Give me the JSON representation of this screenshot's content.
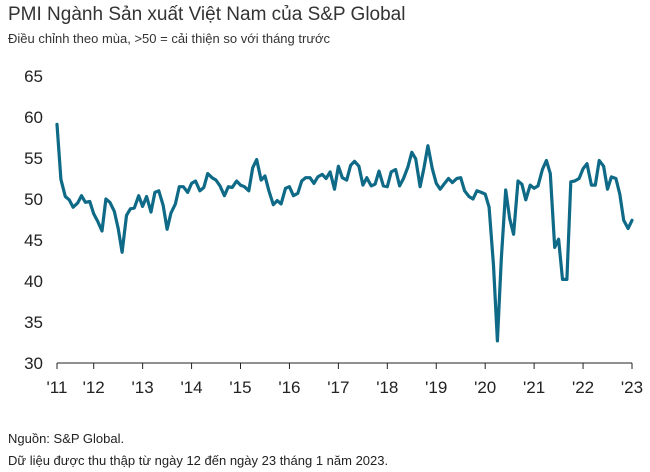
{
  "header": {
    "title": "PMI Ngành Sản xuất Việt Nam của S&P Global",
    "subtitle": "Điều chỉnh theo mùa, >50 = cải thiện so với tháng trước"
  },
  "footer": {
    "source": "Nguồn: S&P Global.",
    "note": "Dữ liệu được thu thập từ ngày 12 đến ngày 23 tháng 1 năm 2023."
  },
  "chart_data": {
    "type": "line",
    "title": "PMI Ngành Sản xuất Việt Nam của S&P Global",
    "subtitle": "Điều chỉnh theo mùa, >50 = cải thiện so với tháng trước",
    "xlabel": "",
    "ylabel": "",
    "ylim": [
      30,
      65
    ],
    "yticks": [
      30,
      35,
      40,
      45,
      50,
      55,
      60,
      65
    ],
    "xlim": [
      2011.25,
      2023.0
    ],
    "xticks": [
      {
        "value": 2011.25,
        "label": "'11"
      },
      {
        "value": 2012.0,
        "label": "'12"
      },
      {
        "value": 2013.0,
        "label": "'13"
      },
      {
        "value": 2014.0,
        "label": "'14"
      },
      {
        "value": 2015.0,
        "label": "'15"
      },
      {
        "value": 2016.0,
        "label": "'16"
      },
      {
        "value": 2017.0,
        "label": "'17"
      },
      {
        "value": 2018.0,
        "label": "'18"
      },
      {
        "value": 2019.0,
        "label": "'19"
      },
      {
        "value": 2020.0,
        "label": "'20"
      },
      {
        "value": 2021.0,
        "label": "'21"
      },
      {
        "value": 2022.0,
        "label": "'22"
      },
      {
        "value": 2023.0,
        "label": "'23"
      }
    ],
    "grid": false,
    "line_color": "#0e6a86",
    "series": [
      {
        "x": [
          2011.25,
          2011.33,
          2011.42,
          2011.5,
          2011.58,
          2011.67,
          2011.75,
          2011.83,
          2011.92,
          2012.0,
          2012.08,
          2012.17,
          2012.25,
          2012.33,
          2012.42,
          2012.5,
          2012.58,
          2012.67,
          2012.75,
          2012.83,
          2012.92,
          2013.0,
          2013.08,
          2013.17,
          2013.25,
          2013.33,
          2013.42,
          2013.5,
          2013.58,
          2013.67,
          2013.75,
          2013.83,
          2013.92,
          2014.0,
          2014.08,
          2014.17,
          2014.25,
          2014.33,
          2014.42,
          2014.5,
          2014.58,
          2014.67,
          2014.75,
          2014.83,
          2014.92,
          2015.0,
          2015.08,
          2015.17,
          2015.25,
          2015.33,
          2015.42,
          2015.5,
          2015.58,
          2015.67,
          2015.75,
          2015.83,
          2015.92,
          2016.0,
          2016.08,
          2016.17,
          2016.25,
          2016.33,
          2016.42,
          2016.5,
          2016.58,
          2016.67,
          2016.75,
          2016.83,
          2016.92,
          2017.0,
          2017.08,
          2017.17,
          2017.25,
          2017.33,
          2017.42,
          2017.5,
          2017.58,
          2017.67,
          2017.75,
          2017.83,
          2017.92,
          2018.0,
          2018.08,
          2018.17,
          2018.25,
          2018.33,
          2018.42,
          2018.5,
          2018.58,
          2018.67,
          2018.75,
          2018.83,
          2018.92,
          2019.0,
          2019.08,
          2019.17,
          2019.25,
          2019.33,
          2019.42,
          2019.5,
          2019.58,
          2019.67,
          2019.75,
          2019.83,
          2019.92,
          2020.0,
          2020.08,
          2020.17,
          2020.25,
          2020.33,
          2020.42,
          2020.5,
          2020.58,
          2020.67,
          2020.75,
          2020.83,
          2020.92,
          2021.0,
          2021.08,
          2021.17,
          2021.25,
          2021.33,
          2021.42,
          2021.5,
          2021.58,
          2021.67,
          2021.75,
          2021.83,
          2021.92,
          2022.0,
          2022.08,
          2022.17,
          2022.25,
          2022.33,
          2022.42,
          2022.5,
          2022.58,
          2022.67,
          2022.75,
          2022.83,
          2022.92,
          2023.0
        ],
        "values": [
          59.1,
          52.4,
          50.3,
          49.9,
          49.0,
          49.5,
          50.4,
          49.6,
          49.7,
          48.2,
          47.3,
          46.1,
          50.0,
          49.6,
          48.5,
          46.4,
          43.5,
          48.0,
          48.8,
          48.9,
          50.4,
          49.1,
          50.3,
          48.4,
          50.8,
          51.0,
          49.2,
          46.3,
          48.3,
          49.4,
          51.5,
          51.5,
          50.8,
          51.9,
          52.2,
          51.0,
          51.4,
          53.1,
          52.6,
          52.3,
          51.6,
          50.4,
          51.5,
          51.4,
          52.2,
          51.7,
          51.5,
          51.0,
          53.8,
          54.8,
          52.3,
          52.8,
          51.0,
          49.3,
          49.8,
          49.4,
          51.3,
          51.5,
          50.4,
          50.7,
          52.2,
          52.6,
          52.6,
          51.9,
          52.7,
          53.0,
          52.5,
          53.3,
          51.2,
          54.0,
          52.6,
          52.3,
          54.1,
          54.6,
          54.0,
          51.7,
          52.6,
          51.6,
          51.8,
          53.4,
          51.6,
          51.5,
          53.3,
          53.6,
          51.6,
          52.5,
          53.9,
          55.7,
          54.9,
          51.5,
          53.8,
          56.5,
          53.7,
          51.9,
          51.2,
          51.9,
          52.5,
          52.0,
          52.5,
          52.6,
          51.0,
          50.3,
          50.0,
          51.0,
          50.8,
          50.6,
          49.0,
          41.9,
          32.7,
          42.7,
          51.1,
          47.6,
          45.7,
          52.2,
          51.8,
          49.9,
          51.7,
          51.3,
          51.6,
          53.6,
          54.7,
          53.1,
          44.1,
          45.1,
          40.2,
          40.2,
          52.1,
          52.2,
          52.5,
          53.7,
          54.3,
          51.7,
          51.7,
          54.7,
          54.0,
          51.2,
          52.7,
          52.5,
          50.6,
          47.4,
          46.4,
          47.4
        ]
      }
    ]
  }
}
